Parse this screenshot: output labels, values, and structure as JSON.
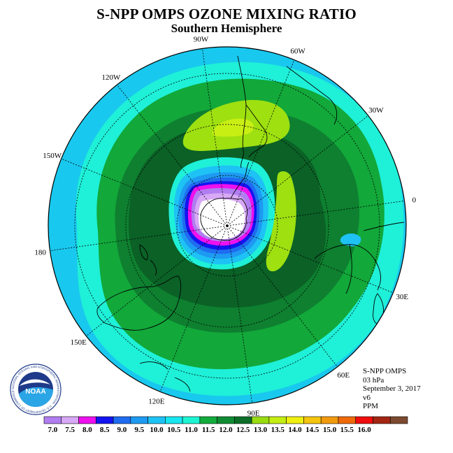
{
  "title": "S-NPP OMPS OZONE MIXING RATIO",
  "subtitle": "Southern Hemisphere",
  "longitude_labels": [
    {
      "text": "90W",
      "lon": -90
    },
    {
      "text": "60W",
      "lon": -60
    },
    {
      "text": "30W",
      "lon": -30
    },
    {
      "text": "0",
      "lon": 0
    },
    {
      "text": "30E",
      "lon": 30
    },
    {
      "text": "60E",
      "lon": 60
    },
    {
      "text": "90E",
      "lon": 90
    },
    {
      "text": "120E",
      "lon": 120
    },
    {
      "text": "150E",
      "lon": 150
    },
    {
      "text": "180",
      "lon": 180
    },
    {
      "text": "150W",
      "lon": -150
    },
    {
      "text": "120W",
      "lon": -120
    }
  ],
  "info": {
    "instrument": "S-NPP OMPS",
    "level": "03 hPa",
    "date": "September 3, 2017",
    "version": "v6",
    "units": "PPM"
  },
  "logo": {
    "text": "NOAA",
    "ring_text": "NATIONAL OCEANIC AND ATMOSPHERIC ADMINISTRATION · U.S. DEPARTMENT OF COMMERCE"
  },
  "legend": {
    "ticks": [
      "7.0",
      "7.5",
      "8.0",
      "8.5",
      "9.0",
      "9.5",
      "10.0",
      "10.5",
      "11.0",
      "11.5",
      "12.0",
      "12.5",
      "13.0",
      "13.5",
      "14.0",
      "14.5",
      "15.0",
      "15.5",
      "16.0"
    ],
    "colors": [
      "#b07ef0",
      "#d7a8f5",
      "#ee10ee",
      "#1414f0",
      "#1f6cf0",
      "#1e9af2",
      "#1ec2f5",
      "#18e6f0",
      "#1df5d2",
      "#12ac3c",
      "#0f8c33",
      "#0c6e28",
      "#99dd11",
      "#c4ee13",
      "#f0f010",
      "#f4c40e",
      "#f29a0e",
      "#f06a0a",
      "#f00d0d",
      "#a32613",
      "#7c4a30"
    ]
  },
  "map_colors": {
    "c105": "#19c8ee",
    "c110": "#1ff0d8",
    "c115": "#12a83a",
    "c120": "#0e8030",
    "c125": "#0b6126",
    "c130": "#9ee010",
    "c135": "#c8ef14",
    "c_low1": "#1ec2f5",
    "c_low2": "#1e9af2",
    "c_low3": "#1f6cf0",
    "c_low4": "#1414f0",
    "c_low5": "#ee10ee",
    "c_low6": "#b07ef0",
    "c_low7": "#d7a8f5",
    "pole": "#ffffff"
  }
}
